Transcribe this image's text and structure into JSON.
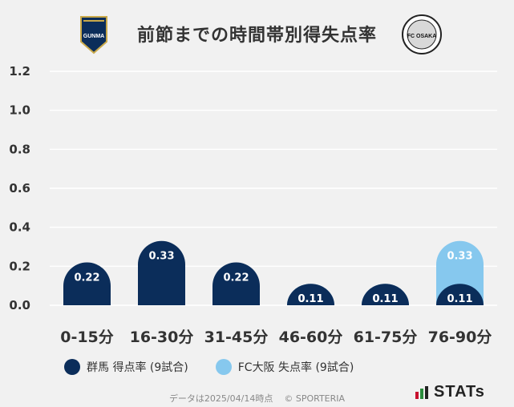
{
  "header": {
    "title": "前節までの時間帯別得失点率",
    "left_logo_text": "GUNMA",
    "right_logo_text": "FC OSAKA"
  },
  "colors": {
    "gunma": "#0b2d5a",
    "osaka": "#86c8ee",
    "grid": "#ffffff",
    "axis_text": "#333333"
  },
  "legend": {
    "gunma_label": "群馬 得点率 (9試合)",
    "osaka_label": "FC大阪 失点率 (9試合)"
  },
  "footer": {
    "date_text": "データは2025/04/14時点",
    "copyright": "© SPORTERIA"
  },
  "brand": {
    "stats_text": "STATs"
  },
  "chart_data": {
    "type": "bar",
    "title": "前節までの時間帯別得失点率",
    "categories": [
      "0-15分",
      "16-30分",
      "31-45分",
      "46-60分",
      "61-75分",
      "76-90分"
    ],
    "series": [
      {
        "name": "群馬 得点率 (9試合)",
        "values": [
          0.22,
          0.33,
          0.22,
          0.11,
          0.11,
          0.11
        ]
      },
      {
        "name": "FC大阪 失点率 (9試合)",
        "values": [
          0,
          0,
          0,
          0.11,
          0.11,
          0.33
        ]
      }
    ],
    "yticks": [
      "0.0",
      "0.2",
      "0.4",
      "0.6",
      "0.8",
      "1.0",
      "1.2"
    ],
    "ylim": [
      0,
      1.2
    ],
    "grid": true,
    "xlabel": "",
    "ylabel": ""
  }
}
